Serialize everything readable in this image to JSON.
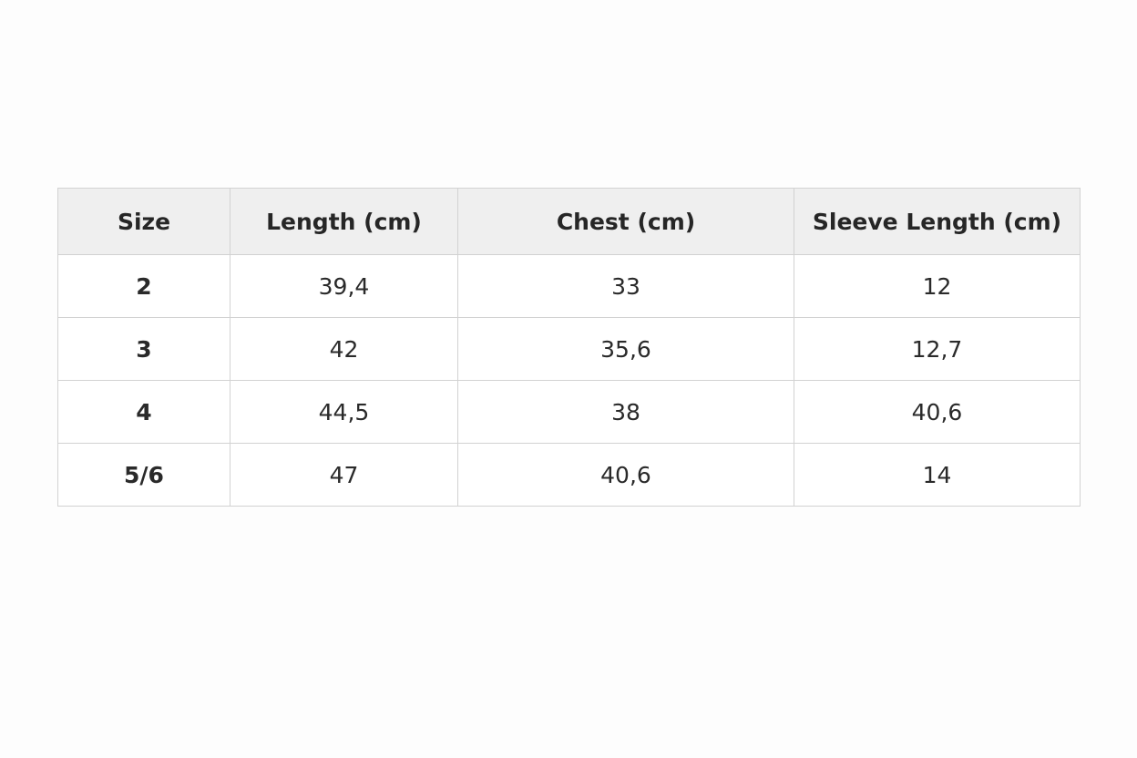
{
  "table": {
    "headers": [
      "Size",
      "Length (cm)",
      "Chest (cm)",
      "Sleeve Length (cm)"
    ],
    "rows": [
      [
        "2",
        "39,4",
        "33",
        "12"
      ],
      [
        "3",
        "42",
        "35,6",
        "12,7"
      ],
      [
        "4",
        "44,5",
        "38",
        "40,6"
      ],
      [
        "5/6",
        "47",
        "40,6",
        "14"
      ]
    ]
  }
}
